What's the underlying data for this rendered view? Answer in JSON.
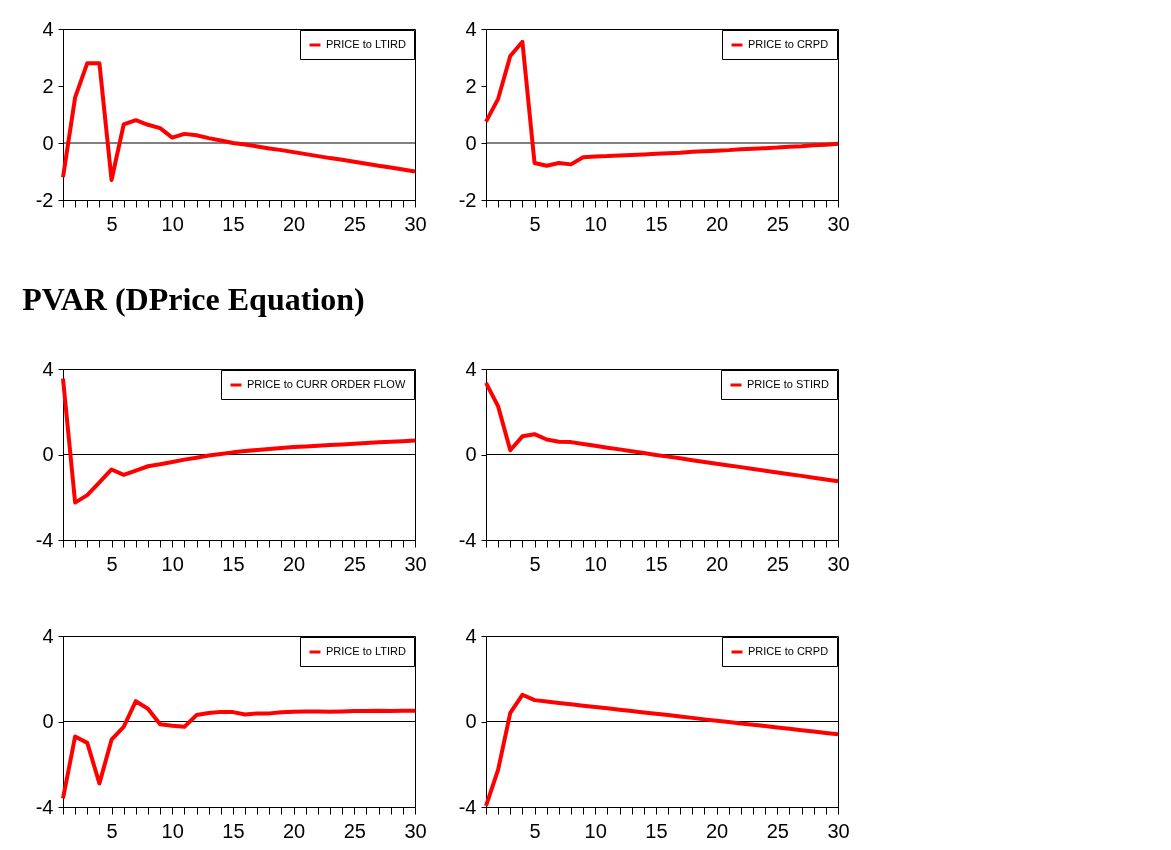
{
  "chart_data": [
    {
      "type": "line",
      "x": [
        1,
        2,
        3,
        4,
        5,
        6,
        7,
        8,
        9,
        10,
        11,
        12,
        13,
        14,
        15,
        16,
        17,
        18,
        19,
        20,
        21,
        22,
        23,
        24,
        25,
        26,
        27,
        28,
        29,
        30
      ],
      "xlim": [
        1,
        30
      ],
      "xticks": [
        {
          "value": 1,
          "label": null
        },
        {
          "value": 2,
          "label": null
        },
        {
          "value": 3,
          "label": null
        },
        {
          "value": 4,
          "label": null
        },
        5,
        {
          "value": 6,
          "label": null
        },
        {
          "value": 7,
          "label": null
        },
        {
          "value": 8,
          "label": null
        },
        {
          "value": 9,
          "label": null
        },
        10,
        {
          "value": 11,
          "label": null
        },
        {
          "value": 12,
          "label": null
        },
        {
          "value": 13,
          "label": null
        },
        {
          "value": 14,
          "label": null
        },
        15,
        {
          "value": 16,
          "label": null
        },
        {
          "value": 17,
          "label": null
        },
        {
          "value": 18,
          "label": null
        },
        {
          "value": 19,
          "label": null
        },
        20,
        {
          "value": 21,
          "label": null
        },
        {
          "value": 22,
          "label": null
        },
        {
          "value": 23,
          "label": null
        },
        {
          "value": 24,
          "label": null
        },
        25,
        {
          "value": 26,
          "label": null
        },
        {
          "value": 27,
          "label": null
        },
        {
          "value": 28,
          "label": null
        },
        {
          "value": 29,
          "label": null
        },
        30
      ],
      "ylim": [
        -2,
        4
      ],
      "yticks": [
        -2,
        0,
        2,
        4
      ],
      "legend": "top right",
      "line_style": "solid",
      "ref_lines": [
        {
          "axis": "y",
          "value": 0,
          "color": "#000000"
        }
      ],
      "series": [
        {
          "name": "PRICE to LTIRD",
          "color": "#ff0000",
          "values": [
            -1.2,
            1.6,
            2.8,
            2.8,
            -1.3,
            0.65,
            0.8,
            0.64,
            0.52,
            0.19,
            0.32,
            0.27,
            0.17,
            0.09,
            0.0,
            -0.05,
            -0.12,
            -0.19,
            -0.25,
            -0.32,
            -0.39,
            -0.46,
            -0.53,
            -0.59,
            -0.66,
            -0.73,
            -0.8,
            -0.86,
            -0.93,
            -1.0
          ]
        }
      ]
    },
    {
      "type": "line",
      "x": [
        1,
        2,
        3,
        4,
        5,
        6,
        7,
        8,
        9,
        10,
        11,
        12,
        13,
        14,
        15,
        16,
        17,
        18,
        19,
        20,
        21,
        22,
        23,
        24,
        25,
        26,
        27,
        28,
        29,
        30
      ],
      "xlim": [
        1,
        30
      ],
      "xticks": [
        {
          "value": 1,
          "label": null
        },
        {
          "value": 2,
          "label": null
        },
        {
          "value": 3,
          "label": null
        },
        {
          "value": 4,
          "label": null
        },
        5,
        {
          "value": 6,
          "label": null
        },
        {
          "value": 7,
          "label": null
        },
        {
          "value": 8,
          "label": null
        },
        {
          "value": 9,
          "label": null
        },
        10,
        {
          "value": 11,
          "label": null
        },
        {
          "value": 12,
          "label": null
        },
        {
          "value": 13,
          "label": null
        },
        {
          "value": 14,
          "label": null
        },
        15,
        {
          "value": 16,
          "label": null
        },
        {
          "value": 17,
          "label": null
        },
        {
          "value": 18,
          "label": null
        },
        {
          "value": 19,
          "label": null
        },
        20,
        {
          "value": 21,
          "label": null
        },
        {
          "value": 22,
          "label": null
        },
        {
          "value": 23,
          "label": null
        },
        {
          "value": 24,
          "label": null
        },
        25,
        {
          "value": 26,
          "label": null
        },
        {
          "value": 27,
          "label": null
        },
        {
          "value": 28,
          "label": null
        },
        {
          "value": 29,
          "label": null
        },
        30
      ],
      "ylim": [
        -2,
        4
      ],
      "yticks": [
        -2,
        0,
        2,
        4
      ],
      "legend": "top right",
      "line_style": "solid",
      "ref_lines": [
        {
          "axis": "y",
          "value": 0,
          "color": "#000000"
        }
      ],
      "series": [
        {
          "name": "PRICE to CRPD",
          "color": "#ff0000",
          "values": [
            0.75,
            1.55,
            3.05,
            3.55,
            -0.7,
            -0.8,
            -0.7,
            -0.75,
            -0.5,
            -0.47,
            -0.46,
            -0.44,
            -0.42,
            -0.4,
            -0.38,
            -0.36,
            -0.34,
            -0.31,
            -0.29,
            -0.27,
            -0.25,
            -0.22,
            -0.2,
            -0.18,
            -0.16,
            -0.13,
            -0.11,
            -0.08,
            -0.06,
            -0.03
          ]
        }
      ]
    },
    {
      "type": "line",
      "title": "PVAR (DPrice Equation)",
      "x": [
        1,
        2,
        3,
        4,
        5,
        6,
        7,
        8,
        9,
        10,
        11,
        12,
        13,
        14,
        15,
        16,
        17,
        18,
        19,
        20,
        21,
        22,
        23,
        24,
        25,
        26,
        27,
        28,
        29,
        30
      ],
      "xlim": [
        1,
        30
      ],
      "xticks": [
        {
          "value": 1,
          "label": null
        },
        {
          "value": 2,
          "label": null
        },
        {
          "value": 3,
          "label": null
        },
        {
          "value": 4,
          "label": null
        },
        5,
        {
          "value": 6,
          "label": null
        },
        {
          "value": 7,
          "label": null
        },
        {
          "value": 8,
          "label": null
        },
        {
          "value": 9,
          "label": null
        },
        10,
        {
          "value": 11,
          "label": null
        },
        {
          "value": 12,
          "label": null
        },
        {
          "value": 13,
          "label": null
        },
        {
          "value": 14,
          "label": null
        },
        15,
        {
          "value": 16,
          "label": null
        },
        {
          "value": 17,
          "label": null
        },
        {
          "value": 18,
          "label": null
        },
        {
          "value": 19,
          "label": null
        },
        20,
        {
          "value": 21,
          "label": null
        },
        {
          "value": 22,
          "label": null
        },
        {
          "value": 23,
          "label": null
        },
        {
          "value": 24,
          "label": null
        },
        25,
        {
          "value": 26,
          "label": null
        },
        {
          "value": 27,
          "label": null
        },
        {
          "value": 28,
          "label": null
        },
        {
          "value": 29,
          "label": null
        },
        30
      ],
      "ylim": [
        -4,
        4
      ],
      "yticks": [
        -4,
        0,
        4
      ],
      "legend": "top right",
      "line_style": "solid",
      "ref_lines": [
        {
          "axis": "y",
          "value": 0,
          "color": "#000000"
        }
      ],
      "series": [
        {
          "name": "PRICE to CURR ORDER FLOW",
          "color": "#ff0000",
          "values": [
            3.55,
            -2.25,
            -1.9,
            -1.3,
            -0.7,
            -0.95,
            -0.75,
            -0.55,
            -0.46,
            -0.35,
            -0.24,
            -0.15,
            -0.05,
            0.02,
            0.1,
            0.16,
            0.21,
            0.26,
            0.3,
            0.35,
            0.38,
            0.41,
            0.44,
            0.47,
            0.5,
            0.54,
            0.57,
            0.6,
            0.62,
            0.65
          ]
        }
      ]
    },
    {
      "type": "line",
      "x": [
        1,
        2,
        3,
        4,
        5,
        6,
        7,
        8,
        9,
        10,
        11,
        12,
        13,
        14,
        15,
        16,
        17,
        18,
        19,
        20,
        21,
        22,
        23,
        24,
        25,
        26,
        27,
        28,
        29,
        30
      ],
      "xlim": [
        1,
        30
      ],
      "xticks": [
        {
          "value": 1,
          "label": null
        },
        {
          "value": 2,
          "label": null
        },
        {
          "value": 3,
          "label": null
        },
        {
          "value": 4,
          "label": null
        },
        5,
        {
          "value": 6,
          "label": null
        },
        {
          "value": 7,
          "label": null
        },
        {
          "value": 8,
          "label": null
        },
        {
          "value": 9,
          "label": null
        },
        10,
        {
          "value": 11,
          "label": null
        },
        {
          "value": 12,
          "label": null
        },
        {
          "value": 13,
          "label": null
        },
        {
          "value": 14,
          "label": null
        },
        15,
        {
          "value": 16,
          "label": null
        },
        {
          "value": 17,
          "label": null
        },
        {
          "value": 18,
          "label": null
        },
        {
          "value": 19,
          "label": null
        },
        20,
        {
          "value": 21,
          "label": null
        },
        {
          "value": 22,
          "label": null
        },
        {
          "value": 23,
          "label": null
        },
        {
          "value": 24,
          "label": null
        },
        25,
        {
          "value": 26,
          "label": null
        },
        {
          "value": 27,
          "label": null
        },
        {
          "value": 28,
          "label": null
        },
        {
          "value": 29,
          "label": null
        },
        30
      ],
      "ylim": [
        -4,
        4
      ],
      "yticks": [
        -4,
        0,
        4
      ],
      "legend": "top right",
      "line_style": "solid",
      "ref_lines": [
        {
          "axis": "y",
          "value": 0,
          "color": "#000000"
        }
      ],
      "series": [
        {
          "name": "PRICE to STIRD",
          "color": "#ff0000",
          "values": [
            3.35,
            2.25,
            0.2,
            0.85,
            0.95,
            0.7,
            0.6,
            0.58,
            0.49,
            0.41,
            0.32,
            0.24,
            0.15,
            0.07,
            -0.02,
            -0.1,
            -0.18,
            -0.27,
            -0.35,
            -0.43,
            -0.51,
            -0.59,
            -0.68,
            -0.76,
            -0.84,
            -0.92,
            -1.0,
            -1.09,
            -1.17,
            -1.25
          ]
        }
      ]
    },
    {
      "type": "line",
      "x": [
        1,
        2,
        3,
        4,
        5,
        6,
        7,
        8,
        9,
        10,
        11,
        12,
        13,
        14,
        15,
        16,
        17,
        18,
        19,
        20,
        21,
        22,
        23,
        24,
        25,
        26,
        27,
        28,
        29,
        30
      ],
      "xlim": [
        1,
        30
      ],
      "xticks": [
        {
          "value": 1,
          "label": null
        },
        {
          "value": 2,
          "label": null
        },
        {
          "value": 3,
          "label": null
        },
        {
          "value": 4,
          "label": null
        },
        5,
        {
          "value": 6,
          "label": null
        },
        {
          "value": 7,
          "label": null
        },
        {
          "value": 8,
          "label": null
        },
        {
          "value": 9,
          "label": null
        },
        10,
        {
          "value": 11,
          "label": null
        },
        {
          "value": 12,
          "label": null
        },
        {
          "value": 13,
          "label": null
        },
        {
          "value": 14,
          "label": null
        },
        15,
        {
          "value": 16,
          "label": null
        },
        {
          "value": 17,
          "label": null
        },
        {
          "value": 18,
          "label": null
        },
        {
          "value": 19,
          "label": null
        },
        20,
        {
          "value": 21,
          "label": null
        },
        {
          "value": 22,
          "label": null
        },
        {
          "value": 23,
          "label": null
        },
        {
          "value": 24,
          "label": null
        },
        25,
        {
          "value": 26,
          "label": null
        },
        {
          "value": 27,
          "label": null
        },
        {
          "value": 28,
          "label": null
        },
        {
          "value": 29,
          "label": null
        },
        30
      ],
      "ylim": [
        -4,
        4
      ],
      "yticks": [
        -4,
        0,
        4
      ],
      "legend": "top right",
      "line_style": "solid",
      "ref_lines": [
        {
          "axis": "y",
          "value": 0,
          "color": "#000000"
        }
      ],
      "series": [
        {
          "name": "PRICE to LTIRD",
          "color": "#ff0000",
          "values": [
            -3.6,
            -0.7,
            -1.0,
            -2.9,
            -0.85,
            -0.25,
            0.95,
            0.6,
            -0.13,
            -0.2,
            -0.25,
            0.3,
            0.4,
            0.45,
            0.44,
            0.33,
            0.38,
            0.38,
            0.43,
            0.46,
            0.47,
            0.47,
            0.46,
            0.47,
            0.49,
            0.49,
            0.5,
            0.49,
            0.5,
            0.5
          ]
        }
      ]
    },
    {
      "type": "line",
      "x": [
        1,
        2,
        3,
        4,
        5,
        6,
        7,
        8,
        9,
        10,
        11,
        12,
        13,
        14,
        15,
        16,
        17,
        18,
        19,
        20,
        21,
        22,
        23,
        24,
        25,
        26,
        27,
        28,
        29,
        30
      ],
      "xlim": [
        1,
        30
      ],
      "xticks": [
        {
          "value": 1,
          "label": null
        },
        {
          "value": 2,
          "label": null
        },
        {
          "value": 3,
          "label": null
        },
        {
          "value": 4,
          "label": null
        },
        5,
        {
          "value": 6,
          "label": null
        },
        {
          "value": 7,
          "label": null
        },
        {
          "value": 8,
          "label": null
        },
        {
          "value": 9,
          "label": null
        },
        10,
        {
          "value": 11,
          "label": null
        },
        {
          "value": 12,
          "label": null
        },
        {
          "value": 13,
          "label": null
        },
        {
          "value": 14,
          "label": null
        },
        15,
        {
          "value": 16,
          "label": null
        },
        {
          "value": 17,
          "label": null
        },
        {
          "value": 18,
          "label": null
        },
        {
          "value": 19,
          "label": null
        },
        20,
        {
          "value": 21,
          "label": null
        },
        {
          "value": 22,
          "label": null
        },
        {
          "value": 23,
          "label": null
        },
        {
          "value": 24,
          "label": null
        },
        25,
        {
          "value": 26,
          "label": null
        },
        {
          "value": 27,
          "label": null
        },
        {
          "value": 28,
          "label": null
        },
        {
          "value": 29,
          "label": null
        },
        30
      ],
      "ylim": [
        -4,
        4
      ],
      "yticks": [
        -4,
        0,
        4
      ],
      "legend": "top right",
      "line_style": "solid",
      "ref_lines": [
        {
          "axis": "y",
          "value": 0,
          "color": "#000000"
        }
      ],
      "series": [
        {
          "name": "PRICE to CRPD",
          "color": "#ff0000",
          "values": [
            -3.95,
            -2.25,
            0.4,
            1.25,
            1.0,
            0.94,
            0.87,
            0.81,
            0.74,
            0.68,
            0.62,
            0.55,
            0.49,
            0.42,
            0.36,
            0.3,
            0.23,
            0.17,
            0.1,
            0.04,
            -0.02,
            -0.09,
            -0.15,
            -0.21,
            -0.28,
            -0.34,
            -0.41,
            -0.47,
            -0.54,
            -0.6
          ]
        }
      ]
    }
  ]
}
